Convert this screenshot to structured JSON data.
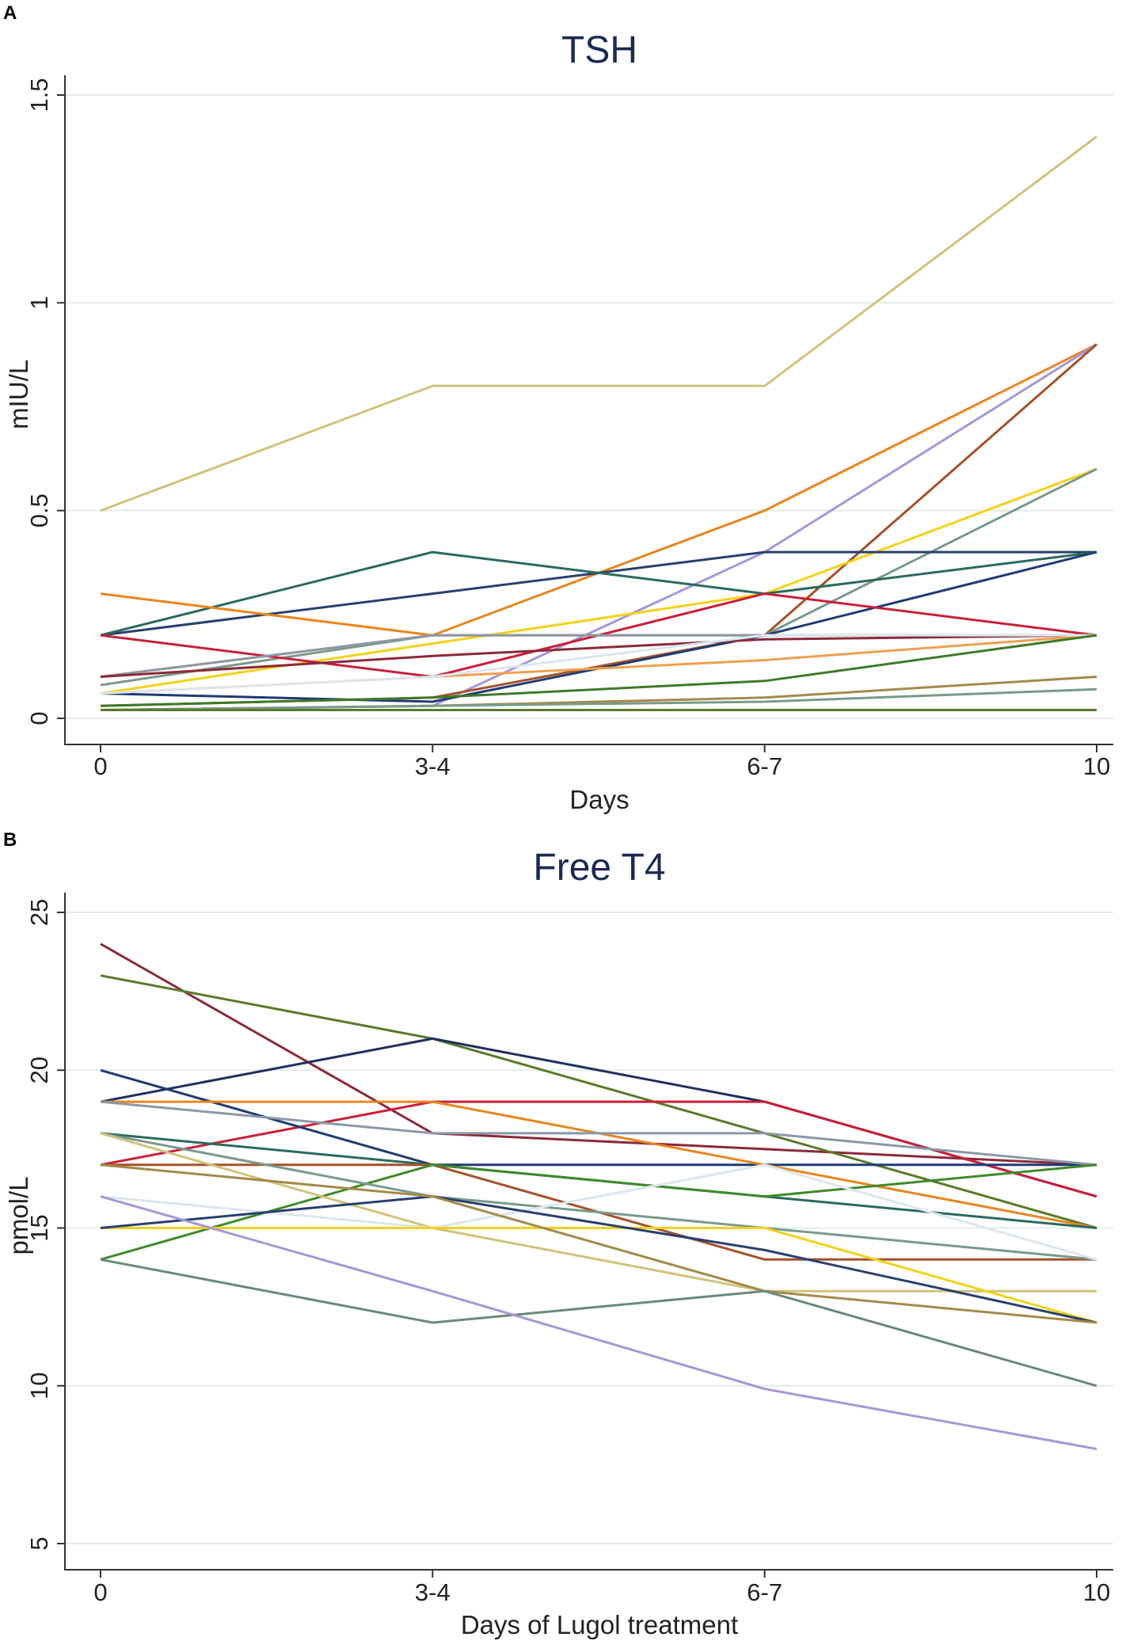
{
  "chart_data": [
    {
      "panel": "A",
      "type": "line",
      "title": "TSH",
      "xlabel": "Days",
      "ylabel": "mIU/L",
      "categories": [
        "0",
        "3-4",
        "6-7",
        "10"
      ],
      "yticks": [
        "0",
        "0.5",
        "1",
        "1.5"
      ],
      "ylim": [
        0,
        1.5
      ],
      "grid": true,
      "series": [
        {
          "color": "#d1c37c",
          "values": [
            0.5,
            0.8,
            0.8,
            1.4
          ]
        },
        {
          "color": "#e8861e",
          "values": [
            0.1,
            0.2,
            0.5,
            0.9
          ]
        },
        {
          "color": "#a896d8",
          "values": [
            0.02,
            0.03,
            0.4,
            0.9
          ]
        },
        {
          "color": "#a5522a",
          "values": [
            0.03,
            0.05,
            0.2,
            0.9
          ]
        },
        {
          "color": "#f5d21a",
          "values": [
            0.06,
            0.18,
            0.3,
            0.6
          ]
        },
        {
          "color": "#7a9a8a",
          "values": [
            0.08,
            0.2,
            0.2,
            0.6
          ]
        },
        {
          "color": "#2a3f6e",
          "values": [
            0.2,
            0.3,
            0.4,
            0.4
          ]
        },
        {
          "color": "#2a6a5e",
          "values": [
            0.2,
            0.4,
            0.3,
            0.4
          ]
        },
        {
          "color": "#1f3b73",
          "values": [
            0.06,
            0.04,
            0.2,
            0.4
          ]
        },
        {
          "color": "#c8203a",
          "values": [
            0.2,
            0.1,
            0.3,
            0.2
          ]
        },
        {
          "color": "#e8861e",
          "values": [
            0.3,
            0.2,
            0.2,
            0.2
          ]
        },
        {
          "color": "#8c98a8",
          "values": [
            0.1,
            0.2,
            0.2,
            0.2
          ]
        },
        {
          "color": "#8b2a3a",
          "values": [
            0.1,
            0.15,
            0.19,
            0.2
          ]
        },
        {
          "color": "#f0a050",
          "values": [
            0.06,
            0.1,
            0.14,
            0.2
          ]
        },
        {
          "color": "#dde6ee",
          "values": [
            0.06,
            0.1,
            0.2,
            0.2
          ]
        },
        {
          "color": "#3f7a2a",
          "values": [
            0.03,
            0.05,
            0.09,
            0.2
          ]
        },
        {
          "color": "#a48a4a",
          "values": [
            0.02,
            0.03,
            0.05,
            0.1
          ]
        },
        {
          "color": "#7a9a8a",
          "values": [
            0.02,
            0.03,
            0.04,
            0.07
          ]
        },
        {
          "color": "#5a7a2a",
          "values": [
            0.02,
            0.02,
            0.02,
            0.02
          ]
        }
      ]
    },
    {
      "panel": "B",
      "type": "line",
      "title": "Free T4",
      "xlabel": "Days of Lugol treatment",
      "ylabel": "pmol/L",
      "categories": [
        "0",
        "3-4",
        "6-7",
        "10"
      ],
      "yticks": [
        "5",
        "10",
        "15",
        "20",
        "25"
      ],
      "ylim": [
        5,
        25
      ],
      "grid": true,
      "series": [
        {
          "color": "#8b2a3a",
          "values": [
            24,
            18,
            17.5,
            17
          ]
        },
        {
          "color": "#5a7a2a",
          "values": [
            23,
            21,
            18,
            15
          ]
        },
        {
          "color": "#1f2f5e",
          "values": [
            19,
            21,
            19,
            16
          ]
        },
        {
          "color": "#c8203a",
          "values": [
            17,
            19,
            19,
            16
          ]
        },
        {
          "color": "#1f3b73",
          "values": [
            20,
            17,
            17,
            17
          ]
        },
        {
          "color": "#e8861e",
          "values": [
            19,
            19,
            17,
            15
          ]
        },
        {
          "color": "#8c98a8",
          "values": [
            19,
            18,
            18,
            17
          ]
        },
        {
          "color": "#2a6a5e",
          "values": [
            18,
            17,
            16,
            15
          ]
        },
        {
          "color": "#a5522a",
          "values": [
            17,
            17,
            14,
            14
          ]
        },
        {
          "color": "#3f8a2a",
          "values": [
            14,
            17,
            16,
            17
          ]
        },
        {
          "color": "#7a9a8a",
          "values": [
            18,
            16,
            15,
            14
          ]
        },
        {
          "color": "#d1c37c",
          "values": [
            18,
            15,
            13,
            13
          ]
        },
        {
          "color": "#dde6ee",
          "values": [
            16,
            15,
            17,
            14
          ]
        },
        {
          "color": "#f5d21a",
          "values": [
            15,
            15,
            15,
            12
          ]
        },
        {
          "color": "#2a3f6e",
          "values": [
            15,
            16,
            14.3,
            12
          ]
        },
        {
          "color": "#a48a4a",
          "values": [
            17,
            16,
            13,
            12
          ]
        },
        {
          "color": "#6a8a78",
          "values": [
            14,
            12,
            13,
            10
          ]
        },
        {
          "color": "#a896d8",
          "values": [
            16,
            13,
            9.9,
            8
          ]
        }
      ]
    }
  ]
}
